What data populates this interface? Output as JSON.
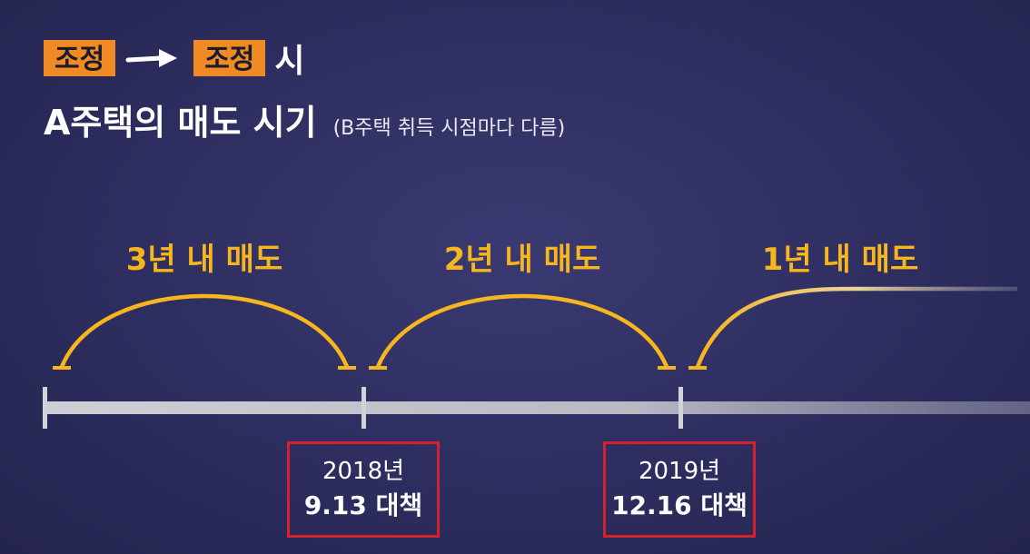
{
  "header": {
    "tag_from": "조정",
    "tag_to": "조정",
    "tag_suffix": "시",
    "title": "A주택의 매도 시기",
    "note": "(B주택 취득 시점마다 다름)"
  },
  "periods": [
    {
      "label": "3년 내 매도"
    },
    {
      "label": "2년 내 매도"
    },
    {
      "label": "1년 내 매도"
    }
  ],
  "milestones": [
    {
      "year": "2018년",
      "policy": "9.13 대책"
    },
    {
      "year": "2019년",
      "policy": "12.16 대책"
    }
  ],
  "colors": {
    "accent_orange": "#f08a24",
    "arc_yellow": "#f7b51e",
    "timeline_gray": "#c9c9cf",
    "box_red": "#d6202c"
  }
}
